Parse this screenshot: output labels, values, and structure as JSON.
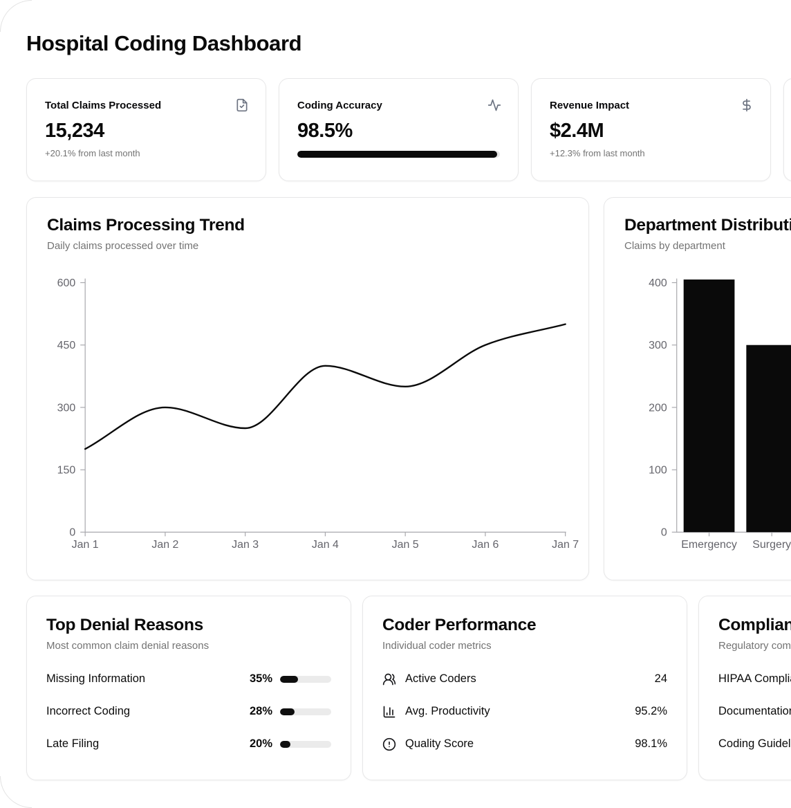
{
  "page": {
    "title": "Hospital Coding Dashboard"
  },
  "stats": [
    {
      "label": "Total Claims Processed",
      "value": "15,234",
      "sub": "+20.1% from last month",
      "icon": "file-check-icon"
    },
    {
      "label": "Coding Accuracy",
      "value": "98.5%",
      "sub": "",
      "progress": 98.5,
      "icon": "activity-icon"
    },
    {
      "label": "Revenue Impact",
      "value": "$2.4M",
      "sub": "+12.3% from last month",
      "icon": "dollar-sign-icon"
    },
    {
      "label": "",
      "value": "",
      "sub": ""
    }
  ],
  "chart_data": [
    {
      "type": "line",
      "title": "Claims Processing Trend",
      "subtitle": "Daily claims processed over time",
      "x": [
        "Jan 1",
        "Jan 2",
        "Jan 3",
        "Jan 4",
        "Jan 5",
        "Jan 6",
        "Jan 7"
      ],
      "values": [
        200,
        300,
        250,
        400,
        350,
        450,
        500
      ],
      "yticks": [
        0,
        150,
        300,
        450,
        600
      ],
      "ylim": [
        0,
        600
      ],
      "grid": false,
      "legend": false,
      "line_color": "#0a0a0a"
    },
    {
      "type": "bar",
      "title": "Department Distribution",
      "subtitle": "Claims by department",
      "categories": [
        "Emergency",
        "Surgery"
      ],
      "values": [
        405,
        300
      ],
      "yticks": [
        0,
        100,
        200,
        300,
        400
      ],
      "ylim": [
        0,
        400
      ],
      "grid": false,
      "legend": false,
      "bar_color": "#0a0a0a"
    }
  ],
  "denials": {
    "title": "Top Denial Reasons",
    "subtitle": "Most common claim denial reasons",
    "rows": [
      {
        "label": "Missing Information",
        "pct": "35%",
        "value": 35
      },
      {
        "label": "Incorrect Coding",
        "pct": "28%",
        "value": 28
      },
      {
        "label": "Late Filing",
        "pct": "20%",
        "value": 20
      }
    ]
  },
  "coders": {
    "title": "Coder Performance",
    "subtitle": "Individual coder metrics",
    "rows": [
      {
        "icon": "users-icon",
        "label": "Active Coders",
        "value": "24"
      },
      {
        "icon": "bar-chart-icon",
        "label": "Avg. Productivity",
        "value": "95.2%"
      },
      {
        "icon": "alert-circle-icon",
        "label": "Quality Score",
        "value": "98.1%"
      }
    ]
  },
  "compliance": {
    "title": "Compliance Status",
    "subtitle": "Regulatory compliance",
    "rows": [
      {
        "label": "HIPAA Compliance"
      },
      {
        "label": "Documentation"
      },
      {
        "label": "Coding Guidelines"
      }
    ]
  },
  "colors": {
    "accent": "#0a0a0a",
    "muted_text": "#737373",
    "border": "#e7e7e8",
    "track": "#e5e5e5"
  }
}
